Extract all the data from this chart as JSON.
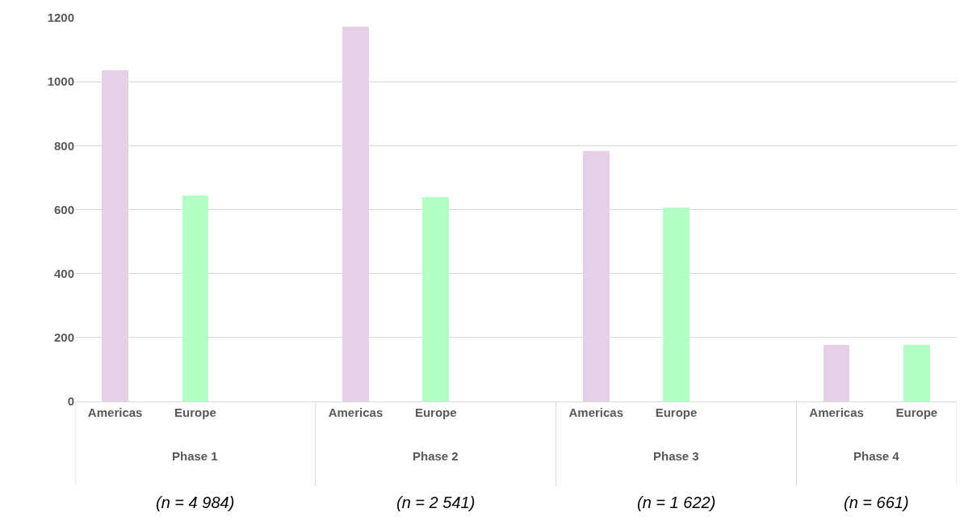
{
  "chart_data": {
    "type": "bar",
    "categories": [
      "Americas",
      "Europe",
      null,
      "Americas",
      "Europe",
      null,
      "Americas",
      "Europe",
      null,
      "Americas",
      "Europe"
    ],
    "values": [
      1035,
      645,
      null,
      1172,
      640,
      null,
      783,
      606,
      null,
      177,
      177
    ],
    "colors": [
      "#e6d0e8",
      "#b3ffc6",
      "#e6d0e8",
      "#e6d0e8",
      "#b3ffc6",
      "#e6d0e8",
      "#e6d0e8",
      "#b3ffc6",
      "#e6d0e8",
      "#e6d0e8",
      "#b3ffc6"
    ],
    "ylim": [
      0,
      1200
    ],
    "yticks": [
      0,
      200,
      400,
      600,
      800,
      1000,
      1200
    ],
    "grid": "y",
    "legend": false,
    "annotations": [
      "Phase 1",
      "Phase 2",
      "Phase 3",
      "Phase 4",
      "(n = 4 984)",
      "(n = 2 541)",
      "(n = 1 622)",
      "(n = 661)"
    ]
  }
}
